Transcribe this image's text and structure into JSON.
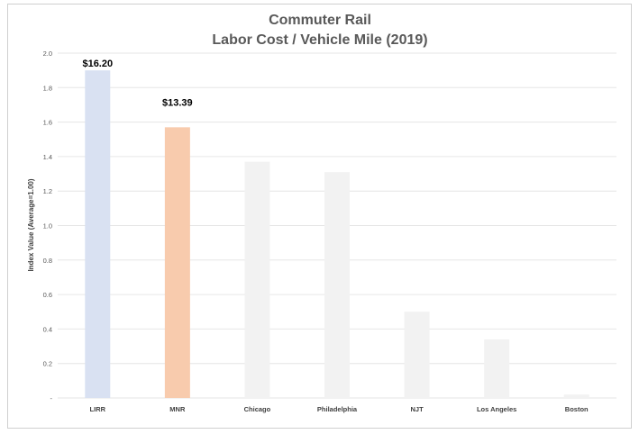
{
  "chart_data": {
    "type": "bar",
    "title": [
      "Commuter Rail",
      "Labor Cost / Vehicle Mile (2019)"
    ],
    "ylabel": "Index Value (Average=1.00)",
    "xlabel": "",
    "ylim": [
      0,
      2.0
    ],
    "yticks": [
      0,
      0.2,
      0.4,
      0.6,
      0.8,
      1.0,
      1.2,
      1.4,
      1.6,
      1.8,
      2.0
    ],
    "ytick_labels": [
      "-",
      "0.2",
      "0.4",
      "0.6",
      "0.8",
      "1.0",
      "1.2",
      "1.4",
      "1.6",
      "1.8",
      "2.0"
    ],
    "grid": true,
    "categories": [
      "LIRR",
      "MNR",
      "Chicago",
      "Philadelphia",
      "NJT",
      "Los Angeles",
      "Boston"
    ],
    "values": [
      1.9,
      1.57,
      1.37,
      1.31,
      0.5,
      0.34,
      0.02
    ],
    "colors": [
      "#d9e1f2",
      "#f8cbad",
      "#f2f2f2",
      "#f2f2f2",
      "#f2f2f2",
      "#f2f2f2",
      "#f2f2f2"
    ],
    "data_labels": [
      "$16.20",
      "$13.39",
      "",
      "",
      "",
      "",
      ""
    ]
  }
}
